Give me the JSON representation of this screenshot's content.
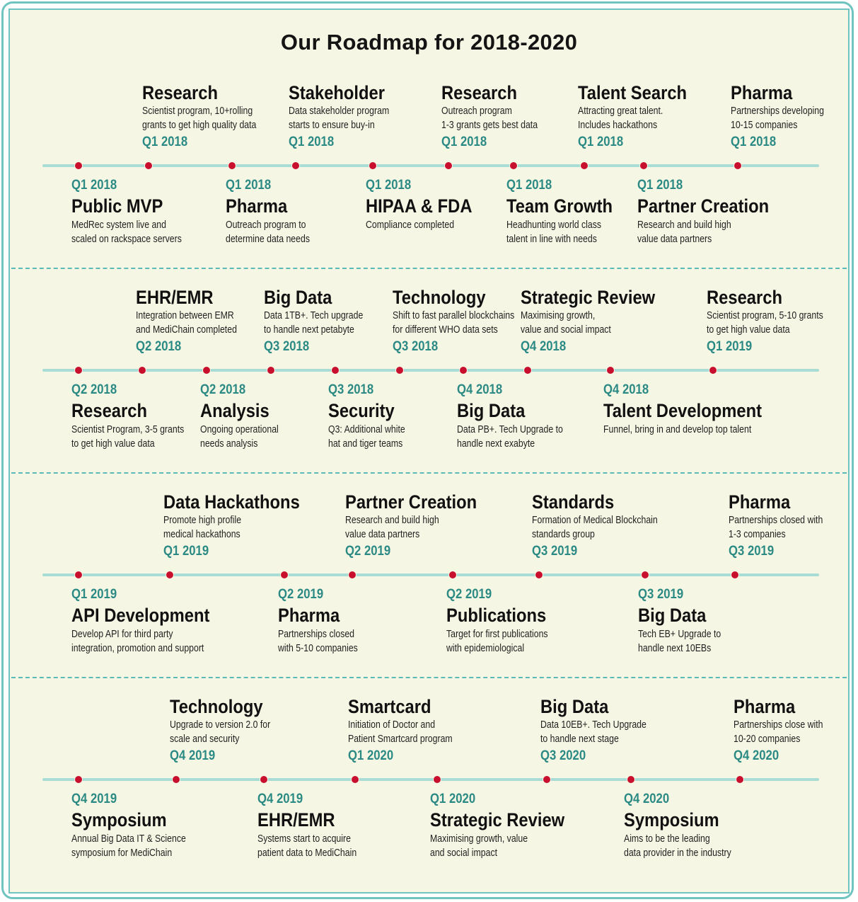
{
  "title": "Our Roadmap for 2018-2020",
  "colors": {
    "accent": "#2c8a84",
    "dot": "#c8102e",
    "line": "#a8dcd5",
    "border": "#6fc4c0",
    "background": "#f6f6e4"
  },
  "rows": [
    {
      "top": [
        {
          "heading": "Research",
          "desc": [
            "Scientist program, 10+rolling",
            "grants to get high quality data"
          ],
          "quarter": "Q1 2018"
        },
        {
          "heading": "Stakeholder",
          "desc": [
            "Data stakeholder program",
            "starts to ensure buy-in"
          ],
          "quarter": "Q1 2018"
        },
        {
          "heading": "Research",
          "desc": [
            "Outreach program",
            "1-3 grants gets best data"
          ],
          "quarter": "Q1 2018"
        },
        {
          "heading": "Talent Search",
          "desc": [
            "Attracting great talent.",
            "Includes hackathons"
          ],
          "quarter": "Q1 2018"
        },
        {
          "heading": "Pharma",
          "desc": [
            "Partnerships developing",
            "10-15 companies"
          ],
          "quarter": "Q1 2018"
        }
      ],
      "bottom": [
        {
          "quarter": "Q1 2018",
          "heading": "Public MVP",
          "desc": [
            "MedRec system live and",
            "scaled on rackspace servers"
          ]
        },
        {
          "quarter": "Q1 2018",
          "heading": "Pharma",
          "desc": [
            "Outreach program to",
            "determine data needs"
          ]
        },
        {
          "quarter": "Q1 2018",
          "heading": "HIPAA & FDA",
          "desc": [
            "Compliance completed"
          ]
        },
        {
          "quarter": "Q1 2018",
          "heading": "Team Growth",
          "desc": [
            "Headhunting world class",
            "talent in line with needs"
          ]
        },
        {
          "quarter": "Q1 2018",
          "heading": "Partner Creation",
          "desc": [
            "Research and build high",
            "value data partners"
          ]
        }
      ]
    },
    {
      "top": [
        {
          "heading": "EHR/EMR",
          "desc": [
            "Integration between EMR",
            "and MediChain completed"
          ],
          "quarter": "Q2 2018"
        },
        {
          "heading": "Big Data",
          "desc": [
            "Data 1TB+. Tech upgrade",
            "to handle next petabyte"
          ],
          "quarter": "Q3 2018"
        },
        {
          "heading": "Technology",
          "desc": [
            "Shift to fast parallel blockchains",
            "for different WHO data sets"
          ],
          "quarter": "Q3 2018"
        },
        {
          "heading": "Strategic Review",
          "desc": [
            "Maximising growth,",
            "value and social impact"
          ],
          "quarter": "Q4 2018"
        },
        {
          "heading": "Research",
          "desc": [
            "Scientist program, 5-10 grants",
            "to get high value data"
          ],
          "quarter": "Q1 2019"
        }
      ],
      "bottom": [
        {
          "quarter": "Q2 2018",
          "heading": "Research",
          "desc": [
            "Scientist Program, 3-5 grants",
            "to get high value data"
          ]
        },
        {
          "quarter": "Q2 2018",
          "heading": "Analysis",
          "desc": [
            "Ongoing operational",
            "needs analysis"
          ]
        },
        {
          "quarter": "Q3 2018",
          "heading": "Security",
          "desc": [
            "Q3: Additional white",
            "hat and tiger teams"
          ]
        },
        {
          "quarter": "Q4 2018",
          "heading": "Big Data",
          "desc": [
            "Data PB+. Tech Upgrade to",
            "handle next exabyte"
          ]
        },
        {
          "quarter": "Q4 2018",
          "heading": "Talent Development",
          "desc": [
            "Funnel, bring in and develop top talent"
          ]
        }
      ]
    },
    {
      "top": [
        {
          "heading": "Data Hackathons",
          "desc": [
            "Promote high profile",
            "medical hackathons"
          ],
          "quarter": "Q1 2019"
        },
        {
          "heading": "Partner Creation",
          "desc": [
            "Research and build high",
            "value data partners"
          ],
          "quarter": "Q2 2019"
        },
        {
          "heading": "Standards",
          "desc": [
            "Formation of Medical Blockchain",
            "standards group"
          ],
          "quarter": "Q3 2019"
        },
        {
          "heading": "Pharma",
          "desc": [
            "Partnerships closed with",
            "1-3 companies"
          ],
          "quarter": "Q3 2019"
        }
      ],
      "bottom": [
        {
          "quarter": "Q1 2019",
          "heading": "API Development",
          "desc": [
            "Develop API for third party",
            "integration, promotion and support"
          ]
        },
        {
          "quarter": "Q2 2019",
          "heading": "Pharma",
          "desc": [
            "Partnerships closed",
            "with 5-10 companies"
          ]
        },
        {
          "quarter": "Q2 2019",
          "heading": "Publications",
          "desc": [
            "Target for first publications",
            "with epidemiological"
          ]
        },
        {
          "quarter": "Q3 2019",
          "heading": "Big Data",
          "desc": [
            "Tech EB+ Upgrade to",
            "handle next 10EBs"
          ]
        }
      ]
    },
    {
      "top": [
        {
          "heading": "Technology",
          "desc": [
            "Upgrade to version 2.0 for",
            "scale and security"
          ],
          "quarter": "Q4 2019"
        },
        {
          "heading": "Smartcard",
          "desc": [
            "Initiation of Doctor and",
            "Patient Smartcard program"
          ],
          "quarter": "Q1 2020"
        },
        {
          "heading": "Big Data",
          "desc": [
            "Data 10EB+. Tech Upgrade",
            "to handle next stage"
          ],
          "quarter": "Q3 2020"
        },
        {
          "heading": "Pharma",
          "desc": [
            "Partnerships close with",
            "10-20 companies"
          ],
          "quarter": "Q4 2020"
        }
      ],
      "bottom": [
        {
          "quarter": "Q4 2019",
          "heading": "Symposium",
          "desc": [
            "Annual Big Data IT & Science",
            "symposium for MediChain"
          ]
        },
        {
          "quarter": "Q4 2019",
          "heading": "EHR/EMR",
          "desc": [
            "Systems start to acquire",
            "patient data to MediChain"
          ]
        },
        {
          "quarter": "Q1 2020",
          "heading": "Strategic Review",
          "desc": [
            "Maximising growth, value",
            "and social impact"
          ]
        },
        {
          "quarter": "Q4 2020",
          "heading": "Symposium",
          "desc": [
            "Aims to be the leading",
            "data provider in the industry"
          ]
        }
      ]
    }
  ]
}
